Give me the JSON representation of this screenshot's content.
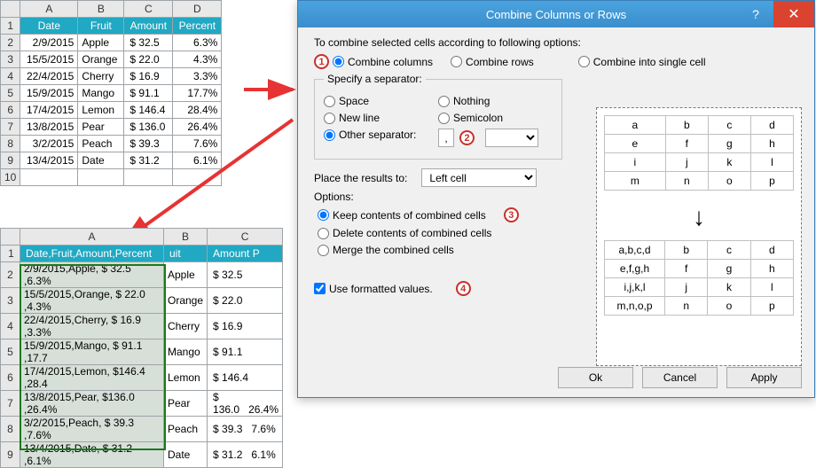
{
  "sheet1": {
    "cols": [
      "A",
      "B",
      "C",
      "D"
    ],
    "headers": [
      "Date",
      "Fruit",
      "Amount",
      "Percent"
    ],
    "rows": [
      [
        "2/9/2015",
        "Apple",
        "$  32.5",
        "6.3%"
      ],
      [
        "15/5/2015",
        "Orange",
        "$  22.0",
        "4.3%"
      ],
      [
        "22/4/2015",
        "Cherry",
        "$  16.9",
        "3.3%"
      ],
      [
        "15/9/2015",
        "Mango",
        "$  91.1",
        "17.7%"
      ],
      [
        "17/4/2015",
        "Lemon",
        "$ 146.4",
        "28.4%"
      ],
      [
        "13/8/2015",
        "Pear",
        "$ 136.0",
        "26.4%"
      ],
      [
        "3/2/2015",
        "Peach",
        "$  39.3",
        "7.6%"
      ],
      [
        "13/4/2015",
        "Date",
        "$  31.2",
        "6.1%"
      ]
    ]
  },
  "sheet2": {
    "cols": [
      "A",
      "B",
      "C"
    ],
    "header_combined": "Date,Fruit,Amount,Percent",
    "header_b": "uit",
    "header_c": "Amount",
    "header_p": "P",
    "rows": [
      [
        "2/9/2015,Apple, $  32.5 ,6.3%",
        "Apple",
        "$  32.5",
        ""
      ],
      [
        "15/5/2015,Orange, $  22.0 ,4.3%",
        "Orange",
        "$  22.0",
        ""
      ],
      [
        "22/4/2015,Cherry, $  16.9 ,3.3%",
        "Cherry",
        "$  16.9",
        ""
      ],
      [
        "15/9/2015,Mango, $  91.1 ,17.7",
        "Mango",
        "$  91.1",
        ""
      ],
      [
        "17/4/2015,Lemon, $146.4 ,28.4",
        "Lemon",
        "$ 146.4",
        ""
      ],
      [
        "13/8/2015,Pear, $136.0 ,26.4%",
        "Pear",
        "$ 136.0",
        "26.4%"
      ],
      [
        "3/2/2015,Peach, $  39.3 ,7.6%",
        "Peach",
        "$  39.3",
        "7.6%"
      ],
      [
        "13/4/2015,Date, $  31.2 ,6.1%",
        "Date",
        "$  31.2",
        "6.1%"
      ]
    ]
  },
  "dialog": {
    "title": "Combine Columns or Rows",
    "intro": "To combine selected cells according to following options:",
    "combine_cols": "Combine columns",
    "combine_rows": "Combine rows",
    "combine_single": "Combine into single cell",
    "separator_legend": "Specify a separator:",
    "sep_space": "Space",
    "sep_nothing": "Nothing",
    "sep_newline": "New line",
    "sep_semicolon": "Semicolon",
    "sep_other": "Other separator:",
    "sep_other_value": ",",
    "place_label": "Place the results to:",
    "place_value": "Left cell",
    "options_label": "Options:",
    "opt_keep": "Keep contents of combined cells",
    "opt_delete": "Delete contents of combined cells",
    "opt_merge": "Merge the combined cells",
    "use_formatted": "Use formatted values.",
    "ok": "Ok",
    "cancel": "Cancel",
    "apply": "Apply",
    "preview_before": [
      [
        "a",
        "b",
        "c",
        "d"
      ],
      [
        "e",
        "f",
        "g",
        "h"
      ],
      [
        "i",
        "j",
        "k",
        "l"
      ],
      [
        "m",
        "n",
        "o",
        "p"
      ]
    ],
    "preview_after": [
      [
        "a,b,c,d",
        "b",
        "c",
        "d"
      ],
      [
        "e,f,g,h",
        "f",
        "g",
        "h"
      ],
      [
        "i,j,k,l",
        "j",
        "k",
        "l"
      ],
      [
        "m,n,o,p",
        "n",
        "o",
        "p"
      ]
    ]
  },
  "markers": {
    "m1": "1",
    "m2": "2",
    "m3": "3",
    "m4": "4"
  },
  "colors": {
    "header_teal": "#21a8c3",
    "arrow_red": "#e63333",
    "marker_red": "#c9302c",
    "title_blue": "#3a8ecb",
    "close_red": "#d9432f"
  }
}
